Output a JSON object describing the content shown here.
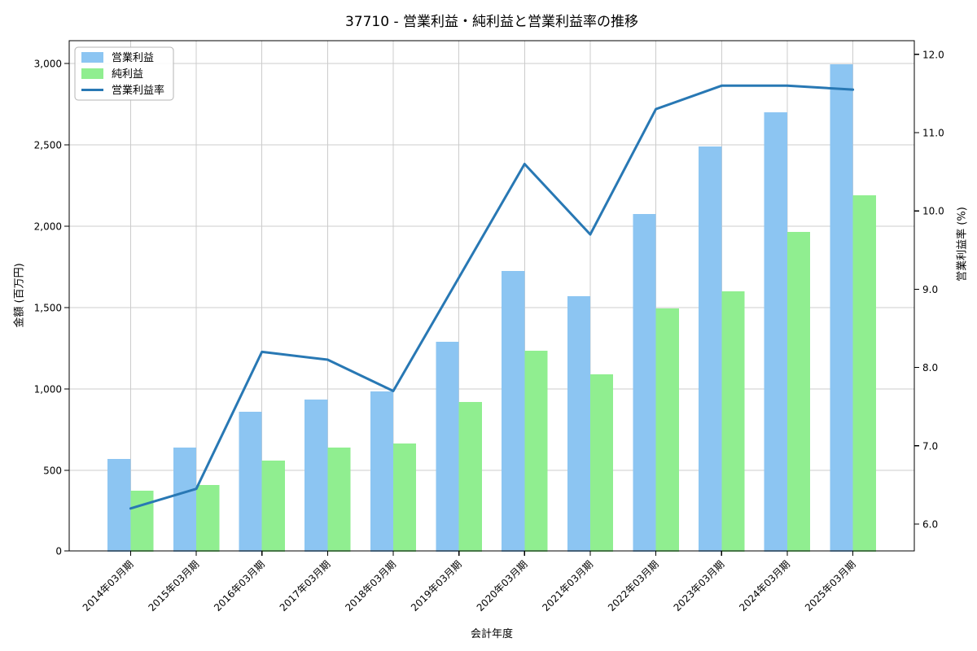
{
  "chart_data": {
    "type": "bar",
    "title": "37710 - 営業利益・純利益と営業利益率の推移",
    "xlabel": "会計年度",
    "ylabel_left": "金額 (百万円)",
    "ylabel_right": "営業利益率 (%)",
    "categories": [
      "2014年03月期",
      "2015年03月期",
      "2016年03月期",
      "2017年03月期",
      "2018年03月期",
      "2019年03月期",
      "2020年03月期",
      "2021年03月期",
      "2022年03月期",
      "2023年03月期",
      "2024年03月期",
      "2025年03月期"
    ],
    "series": [
      {
        "name": "営業利益",
        "type": "bar",
        "axis": "left",
        "color": "#8CC5F2",
        "values": [
          570,
          640,
          860,
          935,
          985,
          1290,
          1725,
          1570,
          2075,
          2490,
          2700,
          2995
        ]
      },
      {
        "name": "純利益",
        "type": "bar",
        "axis": "left",
        "color": "#90EE90",
        "values": [
          375,
          410,
          560,
          640,
          665,
          920,
          1235,
          1090,
          1495,
          1600,
          1965,
          2190
        ]
      },
      {
        "name": "営業利益率",
        "type": "line",
        "axis": "right",
        "color": "#2878B4",
        "values": [
          6.2,
          6.45,
          8.2,
          8.1,
          7.7,
          9.15,
          10.6,
          9.7,
          11.3,
          11.6,
          11.6,
          11.55
        ]
      }
    ],
    "y_left_ticks": [
      "0",
      "500",
      "1,000",
      "1,500",
      "2,000",
      "2,500",
      "3,000"
    ],
    "y_left_tick_values": [
      0,
      500,
      1000,
      1500,
      2000,
      2500,
      3000
    ],
    "ylim_left": [
      0,
      3140
    ],
    "y_right_ticks": [
      "6.0",
      "7.0",
      "8.0",
      "9.0",
      "10.0",
      "11.0",
      "12.0"
    ],
    "y_right_tick_values": [
      6,
      7,
      8,
      9,
      10,
      11,
      12
    ],
    "ylim_right": [
      5.65,
      12.17
    ],
    "grid": true,
    "legend_position": "upper left",
    "colors": {
      "grid": "#CCCCCC",
      "spine": "#000000",
      "legend_border": "#B4B4B4",
      "text": "#000000"
    }
  }
}
